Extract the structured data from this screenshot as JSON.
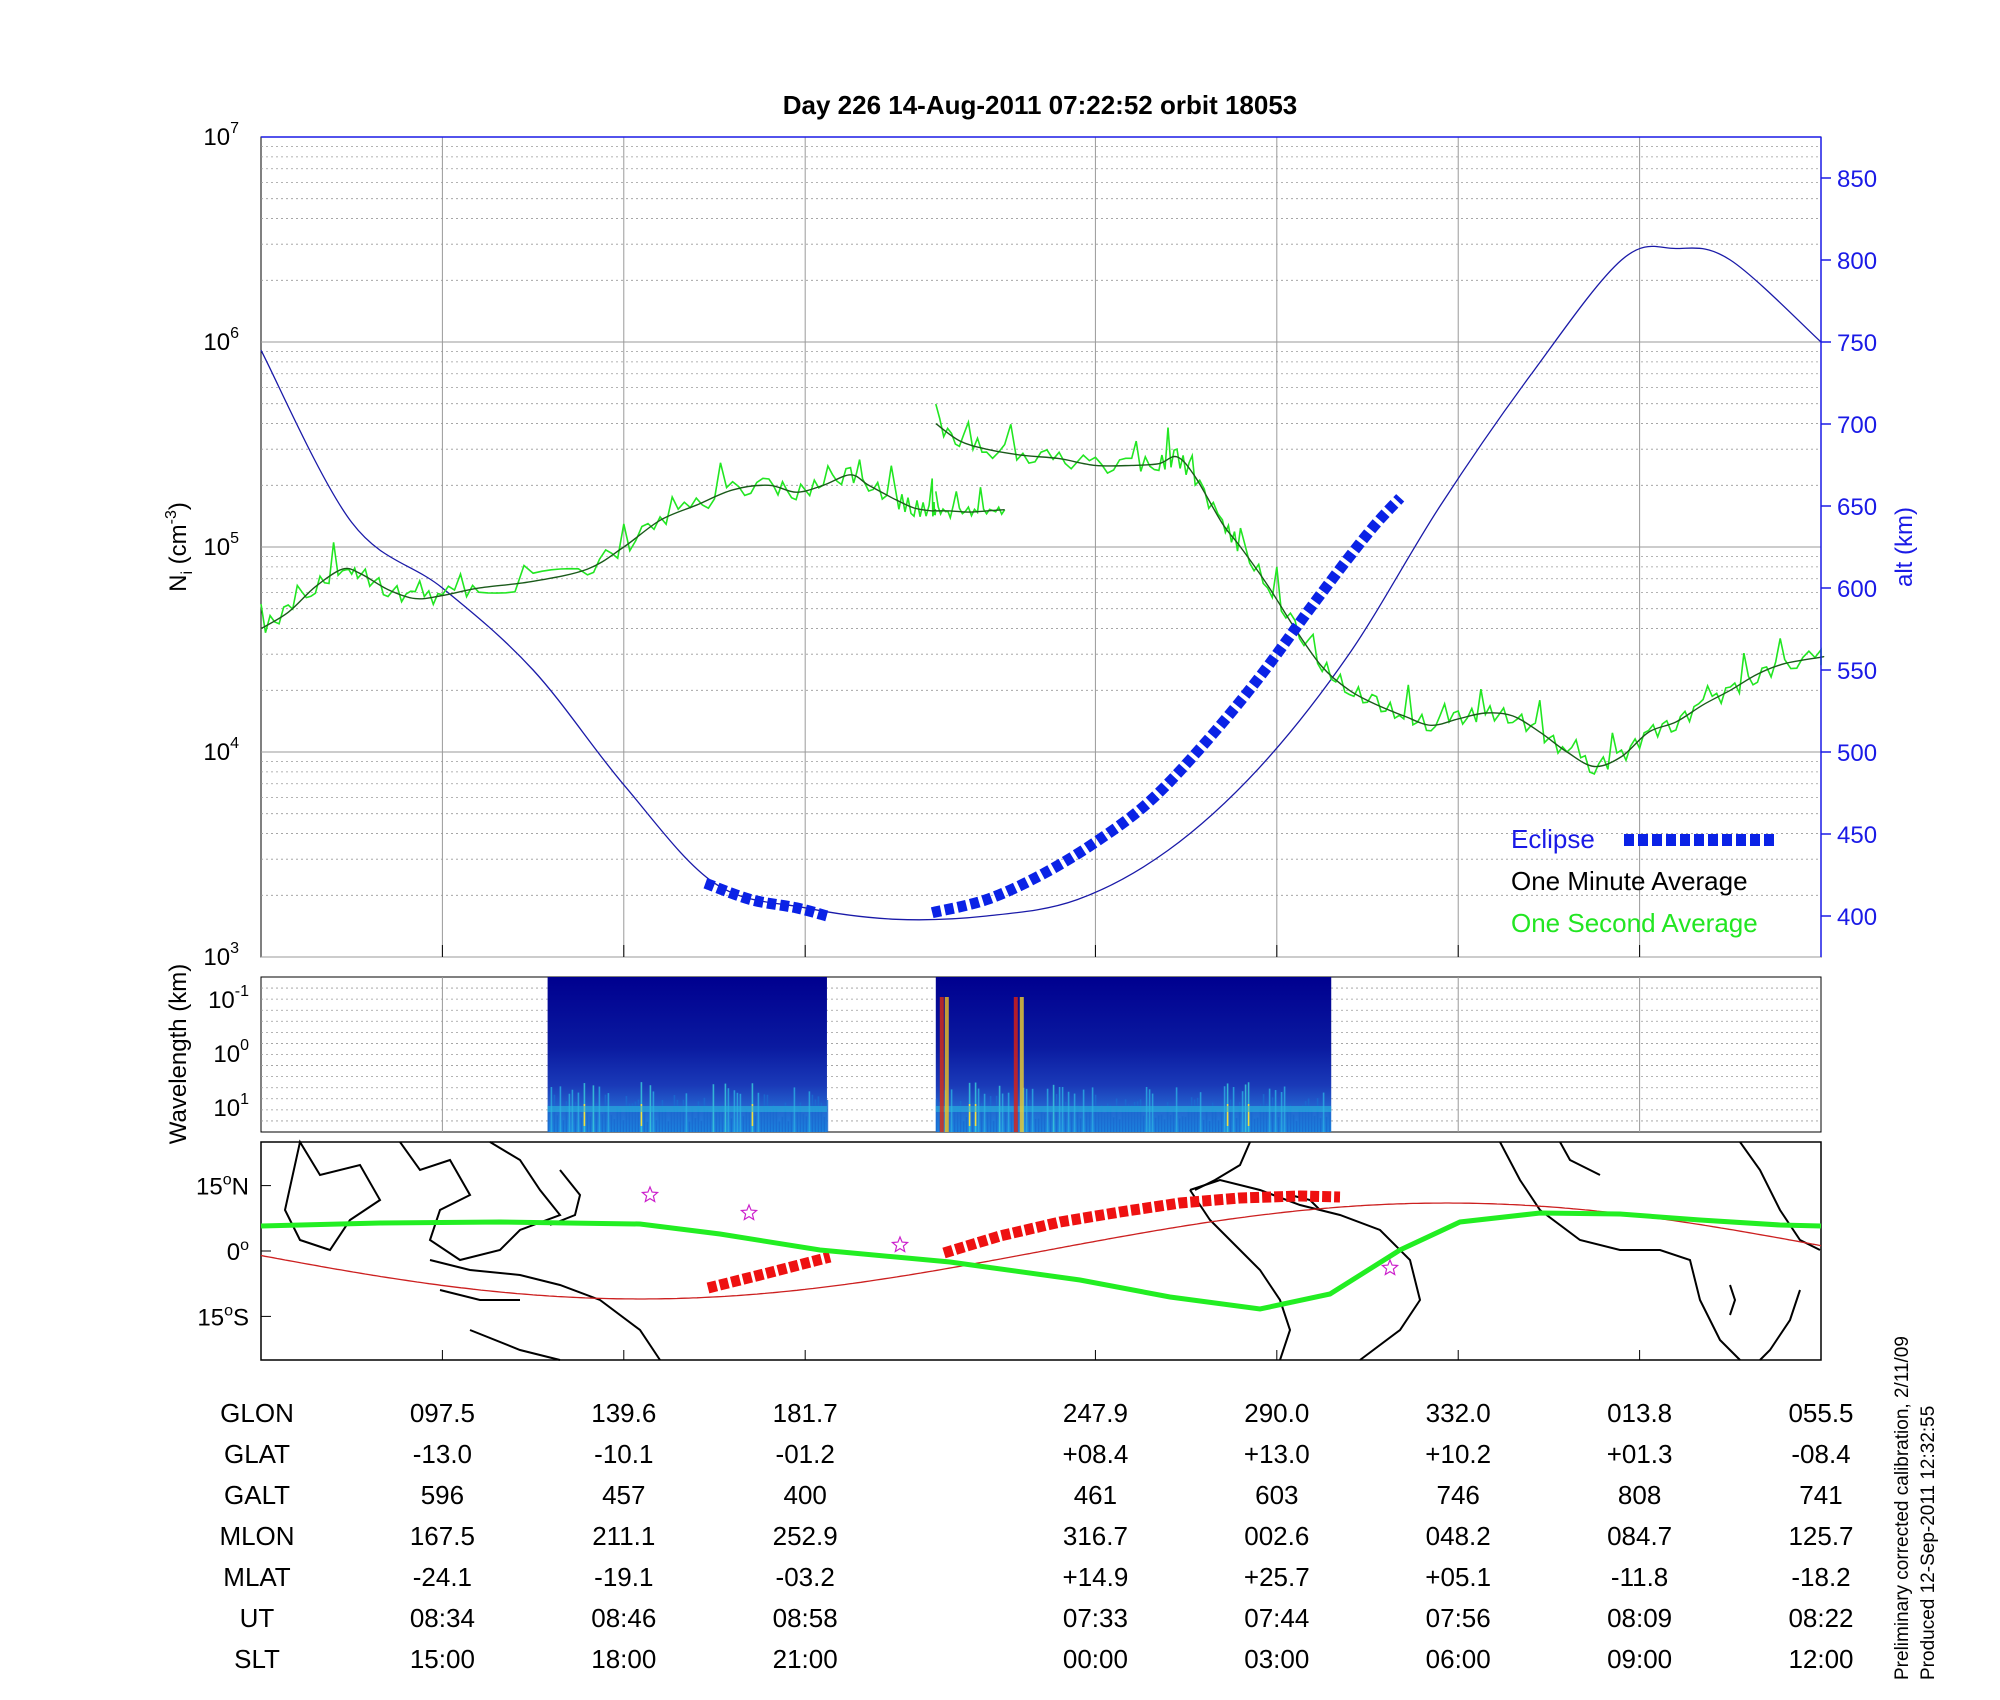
{
  "title": "Day 226  14-Aug-2011 07:22:52   orbit 18053",
  "colors": {
    "altitude": "#1a1aa8",
    "eclipse": "#0a22e6",
    "minute_avg": "#000000",
    "second_avg": "#22e622",
    "map_coast": "#000000",
    "map_green_track": "#22ee22",
    "map_red_track": "#cc2020",
    "map_red_segments": "#ee1111",
    "map_stars": "#cc22cc",
    "right_axis": "#1a1ae6"
  },
  "chart_data": [
    {
      "type": "line",
      "panel": "density",
      "ylabel_main": "N",
      "ylabel_sub": "i",
      "ylabel_tail": " (cm",
      "ylabel_sup": "-3",
      "ylabel_end": ")",
      "yscale": "log",
      "ylim": [
        1000,
        10000000
      ],
      "yticks": [
        {
          "base": "10",
          "exp": "3",
          "value": 1000
        },
        {
          "base": "10",
          "exp": "4",
          "value": 10000
        },
        {
          "base": "10",
          "exp": "5",
          "value": 100000
        },
        {
          "base": "10",
          "exp": "6",
          "value": 1000000
        },
        {
          "base": "10",
          "exp": "7",
          "value": 10000000
        }
      ],
      "xlim": [
        0,
        8.6
      ],
      "grid": true,
      "y2label": "alt (km)",
      "y2lim": [
        375,
        875
      ],
      "y2ticks": [
        "400",
        "450",
        "500",
        "550",
        "600",
        "650",
        "700",
        "750",
        "800",
        "850"
      ],
      "legend": [
        "Eclipse",
        "One Minute Average",
        "One Second Average"
      ],
      "legend_position": "bottom-right",
      "series": [
        {
          "name": "One Minute Average",
          "axis": "left",
          "segments": [
            [
              [
                0,
                40000
              ],
              [
                0.15,
                48000
              ],
              [
                0.3,
                64000
              ],
              [
                0.45,
                78000
              ],
              [
                0.55,
                74000
              ],
              [
                0.7,
                62000
              ],
              [
                0.85,
                56000
              ],
              [
                1.0,
                58000
              ],
              [
                1.2,
                63000
              ],
              [
                1.5,
                68000
              ],
              [
                1.8,
                78000
              ],
              [
                2.0,
                100000
              ],
              [
                2.2,
                135000
              ],
              [
                2.4,
                160000
              ],
              [
                2.6,
                190000
              ],
              [
                2.8,
                200000
              ],
              [
                2.95,
                185000
              ],
              [
                3.1,
                200000
              ],
              [
                3.25,
                225000
              ],
              [
                3.35,
                200000
              ],
              [
                3.5,
                170000
              ],
              [
                3.6,
                155000
              ],
              [
                3.7,
                150000
              ],
              [
                3.72,
                152000
              ]
            ],
            [
              [
                3.72,
                150000
              ],
              [
                3.8,
                150000
              ],
              [
                3.9,
                148000
              ],
              [
                4.0,
                150000
              ],
              [
                4.1,
                152000
              ]
            ],
            [
              [
                3.72,
                450000
              ]
            ],
            [
              [
                3.72,
                400000
              ],
              [
                3.85,
                330000
              ],
              [
                4.0,
                300000
              ],
              [
                4.2,
                280000
              ],
              [
                4.4,
                270000
              ],
              [
                4.6,
                250000
              ],
              [
                4.8,
                250000
              ],
              [
                4.95,
                255000
              ],
              [
                5.05,
                275000
              ],
              [
                5.15,
                220000
              ],
              [
                5.3,
                130000
              ],
              [
                5.4,
                100000
              ],
              [
                5.55,
                65000
              ],
              [
                5.7,
                40000
              ],
              [
                5.85,
                26000
              ],
              [
                6.0,
                20000
              ],
              [
                6.15,
                17000
              ],
              [
                6.3,
                15000
              ],
              [
                6.45,
                13500
              ],
              [
                6.6,
                14500
              ],
              [
                6.75,
                15500
              ],
              [
                6.9,
                15000
              ],
              [
                7.05,
                12500
              ],
              [
                7.2,
                10000
              ],
              [
                7.35,
                8500
              ],
              [
                7.5,
                9500
              ],
              [
                7.65,
                12500
              ],
              [
                7.8,
                14000
              ],
              [
                7.95,
                17000
              ],
              [
                8.1,
                20000
              ],
              [
                8.25,
                24000
              ],
              [
                8.4,
                27000
              ],
              [
                8.6,
                29000
              ],
              [
                8.6,
                29000
              ]
            ]
          ]
        },
        {
          "name": "altitude",
          "axis": "right",
          "points": [
            [
              0,
              745
            ],
            [
              0.5,
              640
            ],
            [
              1.0,
              600
            ],
            [
              1.5,
              550
            ],
            [
              2.0,
              480
            ],
            [
              2.5,
              420
            ],
            [
              3.0,
              405
            ],
            [
              3.5,
              398
            ],
            [
              4.0,
              400
            ],
            [
              4.5,
              410
            ],
            [
              5.0,
              440
            ],
            [
              5.5,
              490
            ],
            [
              6.0,
              560
            ],
            [
              6.5,
              650
            ],
            [
              7.0,
              730
            ],
            [
              7.5,
              800
            ],
            [
              7.8,
              807
            ],
            [
              8.1,
              800
            ],
            [
              8.6,
              750
            ]
          ]
        },
        {
          "name": "Eclipse",
          "axis": "right",
          "segments": [
            [
              [
                2.45,
                420
              ],
              [
                2.7,
                410
              ],
              [
                2.95,
                405
              ],
              [
                3.12,
                400
              ]
            ],
            [
              [
                3.7,
                402
              ],
              [
                4.0,
                410
              ],
              [
                4.3,
                425
              ],
              [
                4.6,
                445
              ],
              [
                4.9,
                470
              ],
              [
                5.2,
                505
              ],
              [
                5.5,
                545
              ],
              [
                5.8,
                590
              ],
              [
                6.1,
                633
              ],
              [
                6.28,
                655
              ]
            ]
          ]
        }
      ]
    },
    {
      "type": "heatmap",
      "panel": "spectrogram",
      "ylabel": "Wavelength (km)",
      "yticks": [
        {
          "base": "10",
          "exp": "-1"
        },
        {
          "base": "10",
          "exp": "0"
        },
        {
          "base": "10",
          "exp": "1"
        }
      ],
      "data_intervals": [
        [
          1.58,
          3.12
        ],
        [
          3.72,
          5.9
        ]
      ],
      "colormap": "jet"
    },
    {
      "type": "line",
      "panel": "map",
      "yticks": [
        {
          "value": "15",
          "deg": "o",
          "hem": "N"
        },
        {
          "value": "0",
          "deg": "o",
          "hem": ""
        },
        {
          "value": "15",
          "deg": "o",
          "hem": "S"
        }
      ],
      "ylim": [
        -25,
        25
      ]
    },
    {
      "type": "table",
      "panel": "ephemeris",
      "row_labels": [
        "GLON",
        "GLAT",
        "GALT",
        "MLON",
        "MLAT",
        "UT",
        "SLT"
      ],
      "columns": [
        [
          "097.5",
          "-13.0",
          "596",
          "167.5",
          "-24.1",
          "08:34",
          "15:00"
        ],
        [
          "139.6",
          "-10.1",
          "457",
          "211.1",
          "-19.1",
          "08:46",
          "18:00"
        ],
        [
          "181.7",
          "-01.2",
          "400",
          "252.9",
          "-03.2",
          "08:58",
          "21:00"
        ],
        [
          "247.9",
          "+08.4",
          "461",
          "316.7",
          "+14.9",
          "07:33",
          "00:00"
        ],
        [
          "290.0",
          "+13.0",
          "603",
          "002.6",
          "+25.7",
          "07:44",
          "03:00"
        ],
        [
          "332.0",
          "+10.2",
          "746",
          "048.2",
          "+05.1",
          "07:56",
          "06:00"
        ],
        [
          "013.8",
          "+01.3",
          "808",
          "084.7",
          "-11.8",
          "08:09",
          "09:00"
        ],
        [
          "055.5",
          "-08.4",
          "741",
          "125.7",
          "-18.2",
          "08:22",
          "12:00"
        ]
      ],
      "column_x": [
        1,
        2,
        3,
        4.6,
        5.6,
        6.6,
        7.6,
        8.6
      ]
    }
  ],
  "footnote": {
    "line1": "Preliminary corrected calibration, 2/11/09",
    "line2": "Produced 12-Sep-2011 12:32:55"
  }
}
